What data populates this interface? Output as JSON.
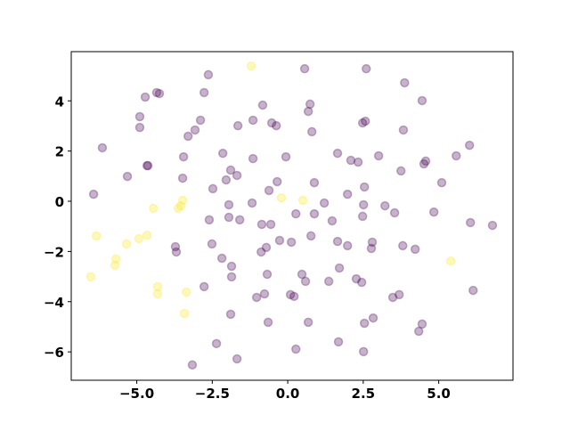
{
  "chart_data": {
    "type": "scatter",
    "x": [
      -6.43,
      -6.14,
      -4.72,
      -4.9,
      -4.34,
      -4.25,
      -4.9,
      -4.66,
      -4.63,
      -5.31,
      -3.45,
      -3.48,
      -3.3,
      -3.07,
      -2.89,
      -2.77,
      -2.63,
      -2.48,
      -2.6,
      -2.51,
      -2.18,
      -2.77,
      -2.36,
      -3.16,
      -3.69,
      -3.72,
      -2.04,
      -2.15,
      -1.89,
      -1.95,
      -1.95,
      -1.65,
      -1.68,
      -1.59,
      -1.86,
      -1.86,
      -1.89,
      -1.68,
      -1.15,
      -1.15,
      -1.18,
      -1.03,
      -0.83,
      -0.86,
      -0.88,
      -0.71,
      -0.68,
      -0.77,
      -0.62,
      -0.65,
      -0.53,
      -0.38,
      -0.35,
      -0.56,
      -0.27,
      -0.06,
      0.09,
      0.21,
      0.12,
      0.27,
      0.27,
      0.56,
      0.47,
      0.59,
      0.68,
      0.68,
      0.74,
      0.8,
      0.88,
      0.77,
      0.88,
      1.21,
      1.47,
      1.36,
      1.65,
      1.65,
      1.71,
      1.68,
      1.98,
      1.98,
      2.09,
      2.33,
      2.27,
      2.45,
      2.48,
      2.51,
      2.54,
      2.48,
      2.57,
      2.6,
      2.51,
      2.54,
      2.8,
      2.77,
      2.83,
      3.01,
      3.22,
      3.54,
      3.75,
      3.48,
      3.69,
      3.87,
      3.83,
      3.81,
      4.22,
      4.45,
      4.51,
      4.57,
      4.84,
      5.1,
      5.58,
      6.02,
      6.05,
      6.14,
      4.45,
      4.34,
      6.78,
      -1.21,
      -6.34,
      -6.52,
      -5.69,
      -5.72,
      -5.34,
      -4.93,
      -4.66,
      -4.45,
      -3.48,
      -3.54,
      -3.63,
      -4.31,
      -4.31,
      -3.36,
      -3.42,
      -0.21,
      0.5,
      5.4
    ],
    "y": [
      0.28,
      2.13,
      4.15,
      3.37,
      4.33,
      4.29,
      2.94,
      1.42,
      1.42,
      0.99,
      1.77,
      0.92,
      2.59,
      2.84,
      3.23,
      4.33,
      5.04,
      0.5,
      -0.74,
      -1.7,
      -2.27,
      -3.4,
      -5.67,
      -6.52,
      -2.02,
      -1.81,
      0.85,
      1.91,
      1.24,
      -0.64,
      -0.14,
      3.01,
      1.03,
      -0.74,
      -2.59,
      -3.01,
      -4.5,
      -6.28,
      3.23,
      1.7,
      -0.07,
      -3.83,
      3.83,
      -0.92,
      -2.02,
      -1.84,
      -2.91,
      -3.69,
      0.43,
      -4.82,
      3.12,
      3.01,
      0.78,
      -0.92,
      -1.56,
      1.77,
      -3.72,
      -3.79,
      -1.63,
      -0.5,
      -5.89,
      5.28,
      -2.91,
      -3.19,
      -4.82,
      3.58,
      3.87,
      2.77,
      0.74,
      -1.38,
      -0.5,
      -0.07,
      -0.78,
      -3.19,
      1.91,
      -1.6,
      -2.66,
      -5.6,
      0.28,
      -1.77,
      1.63,
      1.56,
      -3.09,
      -3.23,
      -0.6,
      -0.14,
      0.57,
      3.12,
      3.19,
      5.28,
      -5.99,
      -4.86,
      -1.63,
      -1.88,
      -4.65,
      1.81,
      -0.18,
      -0.46,
      1.21,
      -3.83,
      -3.72,
      4.72,
      2.84,
      -1.77,
      -1.91,
      4.01,
      1.49,
      1.6,
      -0.43,
      0.74,
      1.81,
      2.23,
      -0.85,
      -3.55,
      -4.89,
      -5.18,
      -0.96,
      5.39,
      -1.38,
      -3.01,
      -2.3,
      -2.55,
      -1.7,
      -1.49,
      -1.35,
      -0.28,
      0.04,
      -0.18,
      -0.28,
      -3.4,
      -3.69,
      -3.62,
      -4.47,
      0.14,
      0.04,
      -2.38
    ],
    "colors": [
      "#440154",
      "#440154",
      "#440154",
      "#440154",
      "#440154",
      "#440154",
      "#440154",
      "#440154",
      "#440154",
      "#440154",
      "#440154",
      "#440154",
      "#440154",
      "#440154",
      "#440154",
      "#440154",
      "#440154",
      "#440154",
      "#440154",
      "#440154",
      "#440154",
      "#440154",
      "#440154",
      "#440154",
      "#440154",
      "#440154",
      "#440154",
      "#440154",
      "#440154",
      "#440154",
      "#440154",
      "#440154",
      "#440154",
      "#440154",
      "#440154",
      "#440154",
      "#440154",
      "#440154",
      "#440154",
      "#440154",
      "#440154",
      "#440154",
      "#440154",
      "#440154",
      "#440154",
      "#440154",
      "#440154",
      "#440154",
      "#440154",
      "#440154",
      "#440154",
      "#440154",
      "#440154",
      "#440154",
      "#440154",
      "#440154",
      "#440154",
      "#440154",
      "#440154",
      "#440154",
      "#440154",
      "#440154",
      "#440154",
      "#440154",
      "#440154",
      "#440154",
      "#440154",
      "#440154",
      "#440154",
      "#440154",
      "#440154",
      "#440154",
      "#440154",
      "#440154",
      "#440154",
      "#440154",
      "#440154",
      "#440154",
      "#440154",
      "#440154",
      "#440154",
      "#440154",
      "#440154",
      "#440154",
      "#440154",
      "#440154",
      "#440154",
      "#440154",
      "#440154",
      "#440154",
      "#440154",
      "#440154",
      "#440154",
      "#440154",
      "#440154",
      "#440154",
      "#440154",
      "#440154",
      "#440154",
      "#440154",
      "#440154",
      "#440154",
      "#440154",
      "#440154",
      "#440154",
      "#440154",
      "#440154",
      "#440154",
      "#440154",
      "#440154",
      "#440154",
      "#440154",
      "#440154",
      "#440154",
      "#440154",
      "#440154",
      "#440154",
      "#fde725",
      "#fde725",
      "#fde725",
      "#fde725",
      "#fde725",
      "#fde725",
      "#fde725",
      "#fde725",
      "#fde725",
      "#fde725",
      "#fde725",
      "#fde725",
      "#fde725",
      "#fde725",
      "#fde725",
      "#fde725",
      "#fde725",
      "#fde725",
      "#fde725"
    ],
    "xlim": [
      -7.17,
      7.46
    ],
    "ylim": [
      -7.13,
      5.96
    ],
    "xticks": [
      {
        "value": -5,
        "label": "−5.0"
      },
      {
        "value": -2.5,
        "label": "−2.5"
      },
      {
        "value": 0,
        "label": "0.0"
      },
      {
        "value": 2.5,
        "label": "2.5"
      },
      {
        "value": 5,
        "label": "5.0"
      }
    ],
    "yticks": [
      {
        "value": -6,
        "label": "−6"
      },
      {
        "value": -4,
        "label": "−4"
      },
      {
        "value": -2,
        "label": "−2"
      },
      0,
      2,
      4
    ]
  }
}
